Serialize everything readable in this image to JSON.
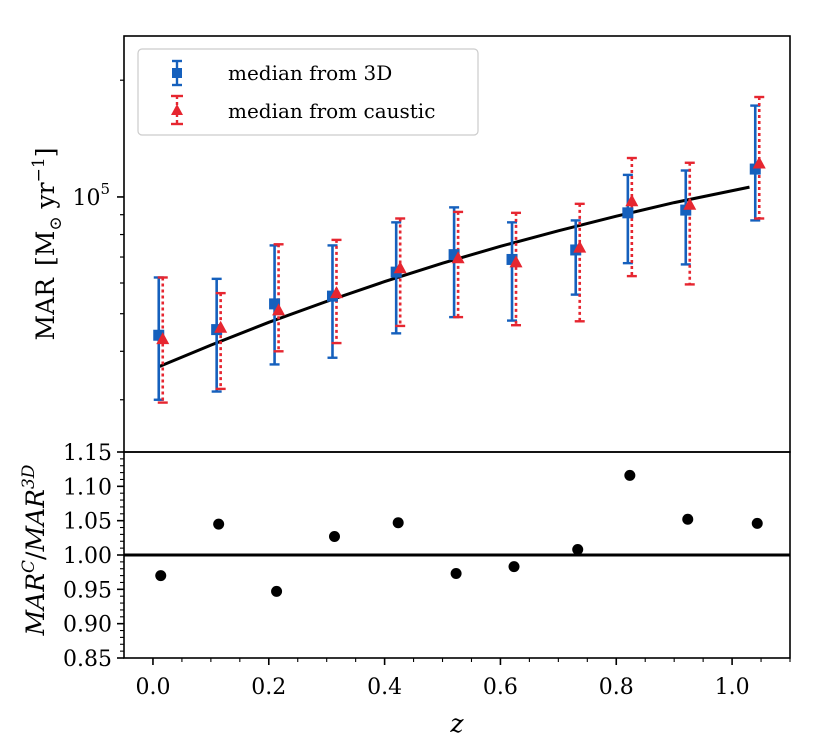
{
  "chart_data": [
    {
      "type": "scatter",
      "panel": "top",
      "yscale": "log",
      "ylabel_main": "MAR",
      "ylabel_unit": "[M",
      "ylabel_unit_sub": "⊙",
      "ylabel_unit_tail": " yr",
      "ylabel_unit_sup": "−1",
      "ylabel_unit_close": "]",
      "ylim": [
        22000,
        260000
      ],
      "xlim": [
        -0.05,
        1.1
      ],
      "ytick_major": {
        "value": 100000,
        "base": "10",
        "exponent": "5"
      },
      "legend": {
        "position": "top-left",
        "entries": [
          "median from 3D",
          "median from caustic"
        ]
      },
      "series": [
        {
          "name": "median from 3D",
          "color": "#1560bd",
          "marker": "square",
          "x": [
            0.01,
            0.11,
            0.21,
            0.31,
            0.42,
            0.52,
            0.62,
            0.73,
            0.82,
            0.92,
            1.04
          ],
          "y": [
            44000,
            45500,
            53000,
            55500,
            64000,
            71000,
            69000,
            73000,
            91000,
            92500,
            118000
          ],
          "yerr_low": [
            30000,
            31500,
            37000,
            38500,
            44500,
            49000,
            48000,
            56000,
            67500,
            67000,
            87000
          ],
          "yerr_high": [
            62000,
            61500,
            75000,
            75000,
            86000,
            94000,
            86000,
            87000,
            114000,
            117000,
            172000
          ]
        },
        {
          "name": "median from caustic",
          "color": "#e62630",
          "marker": "triangle",
          "x": [
            0.01,
            0.11,
            0.21,
            0.31,
            0.42,
            0.52,
            0.62,
            0.73,
            0.82,
            0.92,
            1.04
          ],
          "y": [
            43000,
            46000,
            51000,
            56500,
            65500,
            69500,
            67800,
            74000,
            97500,
            95500,
            122000
          ],
          "yerr_low": [
            29500,
            32000,
            40000,
            42000,
            46500,
            49000,
            46700,
            47800,
            62500,
            59500,
            88000
          ],
          "yerr_high": [
            62000,
            56500,
            75500,
            77500,
            88000,
            91500,
            91000,
            96000,
            126000,
            122500,
            181000
          ]
        },
        {
          "name": "fit",
          "color": "#000000",
          "style": "line",
          "x": [
            0.01,
            0.1,
            0.2,
            0.3,
            0.4,
            0.5,
            0.6,
            0.7,
            0.8,
            0.9,
            1.03
          ],
          "y": [
            36500,
            41500,
            47500,
            53800,
            60500,
            67500,
            74600,
            81800,
            89200,
            96700,
            106000
          ]
        }
      ]
    },
    {
      "type": "scatter",
      "panel": "bottom",
      "ylabel": "MAR^C/MAR^3D",
      "ylabel_parts": {
        "base1": "MAR",
        "sup1": "C",
        "slash": "/",
        "base2": "MAR",
        "sup2": "3D"
      },
      "xlabel": "z",
      "ylim": [
        0.85,
        1.15
      ],
      "xlim": [
        -0.05,
        1.1
      ],
      "yticks": [
        0.85,
        0.9,
        0.95,
        1.0,
        1.05,
        1.1,
        1.15
      ],
      "ytick_labels": [
        "0.85",
        "0.90",
        "0.95",
        "1.00",
        "1.05",
        "1.10",
        "1.15"
      ],
      "xticks": [
        0.0,
        0.2,
        0.4,
        0.6,
        0.8,
        1.0
      ],
      "xtick_labels": [
        "0.0",
        "0.2",
        "0.4",
        "0.6",
        "0.8",
        "1.0"
      ],
      "reference_line": 1.0,
      "series": [
        {
          "name": "ratio",
          "color": "#000000",
          "marker": "circle",
          "x": [
            0.01,
            0.11,
            0.21,
            0.31,
            0.42,
            0.52,
            0.62,
            0.73,
            0.82,
            0.92,
            1.04
          ],
          "y": [
            0.97,
            1.045,
            0.947,
            1.027,
            1.047,
            0.973,
            0.983,
            1.008,
            1.116,
            1.052,
            1.046
          ]
        }
      ]
    }
  ]
}
